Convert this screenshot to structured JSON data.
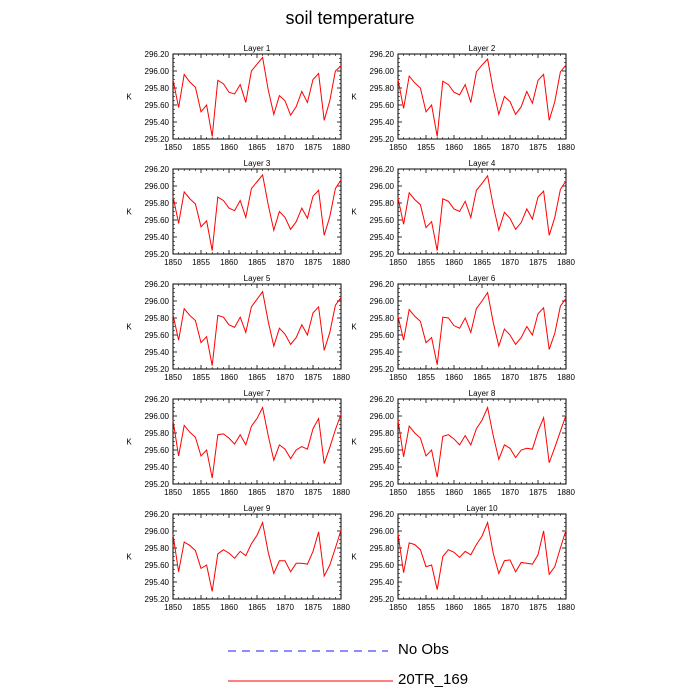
{
  "title": "soil temperature",
  "colors": {
    "model": "#ff0000",
    "obs": "#1a1aff",
    "axis": "#000000"
  },
  "legend": [
    {
      "label": "No Obs",
      "style": "dashed",
      "color": "#1a1aff"
    },
    {
      "label": "20TR_169",
      "style": "solid",
      "color": "#ff0000"
    }
  ],
  "chart_data": [
    {
      "type": "line",
      "title": "Layer 1",
      "ylabel": "K",
      "xlim": [
        1850,
        1880
      ],
      "ylim": [
        295.2,
        296.2
      ],
      "xticks": [
        "1850",
        "1855",
        "1860",
        "1865",
        "1870",
        "1875",
        "1880"
      ],
      "yticks": [
        "295.20",
        "295.40",
        "295.60",
        "295.80",
        "296.00",
        "296.20"
      ],
      "series": [
        {
          "name": "20TR_169",
          "x": [
            1850,
            1851,
            1852,
            1853,
            1854,
            1855,
            1856,
            1857,
            1858,
            1859,
            1860,
            1861,
            1862,
            1863,
            1864,
            1865,
            1866,
            1867,
            1868,
            1869,
            1870,
            1871,
            1872,
            1873,
            1874,
            1875,
            1876,
            1877,
            1878,
            1879,
            1880
          ],
          "values": [
            295.9,
            295.57,
            295.96,
            295.87,
            295.81,
            295.52,
            295.6,
            295.23,
            295.89,
            295.85,
            295.75,
            295.73,
            295.84,
            295.63,
            296.0,
            296.08,
            296.16,
            295.78,
            295.49,
            295.71,
            295.65,
            295.48,
            295.58,
            295.76,
            295.63,
            295.9,
            295.97,
            295.42,
            295.65,
            296.0,
            296.06
          ]
        }
      ]
    },
    {
      "type": "line",
      "title": "Layer 2",
      "ylabel": "K",
      "xlim": [
        1850,
        1880
      ],
      "ylim": [
        295.2,
        296.2
      ],
      "xticks": [
        "1850",
        "1855",
        "1860",
        "1865",
        "1870",
        "1875",
        "1880"
      ],
      "yticks": [
        "295.20",
        "295.40",
        "295.60",
        "295.80",
        "296.00",
        "296.20"
      ],
      "series": [
        {
          "name": "20TR_169",
          "x": [
            1850,
            1851,
            1852,
            1853,
            1854,
            1855,
            1856,
            1857,
            1858,
            1859,
            1860,
            1861,
            1862,
            1863,
            1864,
            1865,
            1866,
            1867,
            1868,
            1869,
            1870,
            1871,
            1872,
            1873,
            1874,
            1875,
            1876,
            1877,
            1878,
            1879,
            1880
          ],
          "values": [
            295.9,
            295.56,
            295.94,
            295.86,
            295.8,
            295.52,
            295.6,
            295.23,
            295.88,
            295.84,
            295.75,
            295.72,
            295.84,
            295.63,
            295.99,
            296.07,
            296.14,
            295.78,
            295.49,
            295.7,
            295.64,
            295.49,
            295.58,
            295.76,
            295.62,
            295.89,
            295.96,
            295.42,
            295.64,
            295.99,
            296.07
          ]
        }
      ]
    },
    {
      "type": "line",
      "title": "Layer 3",
      "ylabel": "K",
      "xlim": [
        1850,
        1880
      ],
      "ylim": [
        295.2,
        296.2
      ],
      "xticks": [
        "1850",
        "1855",
        "1860",
        "1865",
        "1870",
        "1875",
        "1880"
      ],
      "yticks": [
        "295.20",
        "295.40",
        "295.60",
        "295.80",
        "296.00",
        "296.20"
      ],
      "series": [
        {
          "name": "20TR_169",
          "x": [
            1850,
            1851,
            1852,
            1853,
            1854,
            1855,
            1856,
            1857,
            1858,
            1859,
            1860,
            1861,
            1862,
            1863,
            1864,
            1865,
            1866,
            1867,
            1868,
            1869,
            1870,
            1871,
            1872,
            1873,
            1874,
            1875,
            1876,
            1877,
            1878,
            1879,
            1880
          ],
          "values": [
            295.88,
            295.56,
            295.93,
            295.85,
            295.79,
            295.52,
            295.59,
            295.24,
            295.87,
            295.83,
            295.74,
            295.71,
            295.83,
            295.63,
            295.97,
            296.05,
            296.13,
            295.78,
            295.48,
            295.7,
            295.63,
            295.49,
            295.58,
            295.74,
            295.62,
            295.88,
            295.95,
            295.42,
            295.64,
            295.97,
            296.07
          ]
        }
      ]
    },
    {
      "type": "line",
      "title": "Layer 4",
      "ylabel": "K",
      "xlim": [
        1850,
        1880
      ],
      "ylim": [
        295.2,
        296.2
      ],
      "xticks": [
        "1850",
        "1855",
        "1860",
        "1865",
        "1870",
        "1875",
        "1880"
      ],
      "yticks": [
        "295.20",
        "295.40",
        "295.60",
        "295.80",
        "296.00",
        "296.20"
      ],
      "series": [
        {
          "name": "20TR_169",
          "x": [
            1850,
            1851,
            1852,
            1853,
            1854,
            1855,
            1856,
            1857,
            1858,
            1859,
            1860,
            1861,
            1862,
            1863,
            1864,
            1865,
            1866,
            1867,
            1868,
            1869,
            1870,
            1871,
            1872,
            1873,
            1874,
            1875,
            1876,
            1877,
            1878,
            1879,
            1880
          ],
          "values": [
            295.86,
            295.55,
            295.92,
            295.84,
            295.78,
            295.51,
            295.58,
            295.24,
            295.85,
            295.82,
            295.73,
            295.7,
            295.82,
            295.63,
            295.95,
            296.03,
            296.12,
            295.77,
            295.48,
            295.69,
            295.62,
            295.49,
            295.57,
            295.73,
            295.61,
            295.87,
            295.94,
            295.42,
            295.63,
            295.96,
            296.06
          ]
        }
      ]
    },
    {
      "type": "line",
      "title": "Layer 5",
      "ylabel": "K",
      "xlim": [
        1850,
        1880
      ],
      "ylim": [
        295.2,
        296.2
      ],
      "xticks": [
        "1850",
        "1855",
        "1860",
        "1865",
        "1870",
        "1875",
        "1880"
      ],
      "yticks": [
        "295.20",
        "295.40",
        "295.60",
        "295.80",
        "296.00",
        "296.20"
      ],
      "series": [
        {
          "name": "20TR_169",
          "x": [
            1850,
            1851,
            1852,
            1853,
            1854,
            1855,
            1856,
            1857,
            1858,
            1859,
            1860,
            1861,
            1862,
            1863,
            1864,
            1865,
            1866,
            1867,
            1868,
            1869,
            1870,
            1871,
            1872,
            1873,
            1874,
            1875,
            1876,
            1877,
            1878,
            1879,
            1880
          ],
          "values": [
            295.84,
            295.54,
            295.91,
            295.83,
            295.77,
            295.51,
            295.58,
            295.24,
            295.83,
            295.81,
            295.72,
            295.69,
            295.81,
            295.63,
            295.93,
            296.02,
            296.11,
            295.76,
            295.47,
            295.68,
            295.61,
            295.49,
            295.57,
            295.72,
            295.6,
            295.86,
            295.93,
            295.42,
            295.63,
            295.95,
            296.04
          ]
        }
      ]
    },
    {
      "type": "line",
      "title": "Layer 6",
      "ylabel": "K",
      "xlim": [
        1850,
        1880
      ],
      "ylim": [
        295.2,
        296.2
      ],
      "xticks": [
        "1850",
        "1855",
        "1860",
        "1865",
        "1870",
        "1875",
        "1880"
      ],
      "yticks": [
        "295.20",
        "295.40",
        "295.60",
        "295.80",
        "296.00",
        "296.20"
      ],
      "series": [
        {
          "name": "20TR_169",
          "x": [
            1850,
            1851,
            1852,
            1853,
            1854,
            1855,
            1856,
            1857,
            1858,
            1859,
            1860,
            1861,
            1862,
            1863,
            1864,
            1865,
            1866,
            1867,
            1868,
            1869,
            1870,
            1871,
            1872,
            1873,
            1874,
            1875,
            1876,
            1877,
            1878,
            1879,
            1880
          ],
          "values": [
            295.82,
            295.54,
            295.9,
            295.82,
            295.76,
            295.51,
            295.57,
            295.25,
            295.81,
            295.8,
            295.71,
            295.68,
            295.8,
            295.63,
            295.91,
            296.0,
            296.1,
            295.75,
            295.47,
            295.67,
            295.6,
            295.49,
            295.57,
            295.7,
            295.6,
            295.85,
            295.92,
            295.43,
            295.62,
            295.94,
            296.03
          ]
        }
      ]
    },
    {
      "type": "line",
      "title": "Layer 7",
      "ylabel": "K",
      "xlim": [
        1850,
        1880
      ],
      "ylim": [
        295.2,
        296.2
      ],
      "xticks": [
        "1850",
        "1855",
        "1860",
        "1865",
        "1870",
        "1875",
        "1880"
      ],
      "yticks": [
        "295.20",
        "295.40",
        "295.60",
        "295.80",
        "296.00",
        "296.20"
      ],
      "series": [
        {
          "name": "20TR_169",
          "x": [
            1850,
            1851,
            1852,
            1853,
            1854,
            1855,
            1856,
            1857,
            1858,
            1859,
            1860,
            1861,
            1862,
            1863,
            1864,
            1865,
            1866,
            1867,
            1868,
            1869,
            1870,
            1871,
            1872,
            1873,
            1874,
            1875,
            1876,
            1877,
            1878,
            1879,
            1880
          ],
          "values": [
            295.95,
            295.53,
            295.89,
            295.81,
            295.75,
            295.53,
            295.6,
            295.27,
            295.78,
            295.79,
            295.74,
            295.67,
            295.78,
            295.66,
            295.88,
            295.97,
            296.1,
            295.77,
            295.48,
            295.66,
            295.61,
            295.5,
            295.6,
            295.64,
            295.61,
            295.85,
            295.97,
            295.44,
            295.63,
            295.84,
            296.02
          ]
        }
      ]
    },
    {
      "type": "line",
      "title": "Layer 8",
      "ylabel": "K",
      "xlim": [
        1850,
        1880
      ],
      "ylim": [
        295.2,
        296.2
      ],
      "xticks": [
        "1850",
        "1855",
        "1860",
        "1865",
        "1870",
        "1875",
        "1880"
      ],
      "yticks": [
        "295.20",
        "295.40",
        "295.60",
        "295.80",
        "296.00",
        "296.20"
      ],
      "series": [
        {
          "name": "20TR_169",
          "x": [
            1850,
            1851,
            1852,
            1853,
            1854,
            1855,
            1856,
            1857,
            1858,
            1859,
            1860,
            1861,
            1862,
            1863,
            1864,
            1865,
            1866,
            1867,
            1868,
            1869,
            1870,
            1871,
            1872,
            1873,
            1874,
            1875,
            1876,
            1877,
            1878,
            1879,
            1880
          ],
          "values": [
            295.95,
            295.52,
            295.88,
            295.8,
            295.74,
            295.53,
            295.6,
            295.28,
            295.76,
            295.78,
            295.73,
            295.66,
            295.77,
            295.66,
            295.85,
            295.95,
            296.1,
            295.77,
            295.49,
            295.66,
            295.62,
            295.51,
            295.6,
            295.62,
            295.61,
            295.82,
            295.98,
            295.45,
            295.63,
            295.82,
            296.01
          ]
        }
      ]
    },
    {
      "type": "line",
      "title": "Layer 9",
      "ylabel": "K",
      "xlim": [
        1850,
        1880
      ],
      "ylim": [
        295.2,
        296.2
      ],
      "xticks": [
        "1850",
        "1855",
        "1860",
        "1865",
        "1870",
        "1875",
        "1880"
      ],
      "yticks": [
        "295.20",
        "295.40",
        "295.60",
        "295.80",
        "296.00",
        "296.20"
      ],
      "series": [
        {
          "name": "20TR_169",
          "x": [
            1850,
            1851,
            1852,
            1853,
            1854,
            1855,
            1856,
            1857,
            1858,
            1859,
            1860,
            1861,
            1862,
            1863,
            1864,
            1865,
            1866,
            1867,
            1868,
            1869,
            1870,
            1871,
            1872,
            1873,
            1874,
            1875,
            1876,
            1877,
            1878,
            1879,
            1880
          ],
          "values": [
            295.96,
            295.52,
            295.87,
            295.83,
            295.77,
            295.56,
            295.6,
            295.29,
            295.73,
            295.78,
            295.74,
            295.68,
            295.76,
            295.71,
            295.85,
            295.95,
            296.1,
            295.75,
            295.5,
            295.65,
            295.65,
            295.52,
            295.62,
            295.62,
            295.61,
            295.76,
            295.99,
            295.47,
            295.6,
            295.8,
            296.01
          ]
        }
      ]
    },
    {
      "type": "line",
      "title": "Layer 10",
      "ylabel": "K",
      "xlim": [
        1850,
        1880
      ],
      "ylim": [
        295.2,
        296.2
      ],
      "xticks": [
        "1850",
        "1855",
        "1860",
        "1865",
        "1870",
        "1875",
        "1880"
      ],
      "yticks": [
        "295.20",
        "295.40",
        "295.60",
        "295.80",
        "296.00",
        "296.20"
      ],
      "series": [
        {
          "name": "20TR_169",
          "x": [
            1850,
            1851,
            1852,
            1853,
            1854,
            1855,
            1856,
            1857,
            1858,
            1859,
            1860,
            1861,
            1862,
            1863,
            1864,
            1865,
            1866,
            1867,
            1868,
            1869,
            1870,
            1871,
            1872,
            1873,
            1874,
            1875,
            1876,
            1877,
            1878,
            1879,
            1880
          ],
          "values": [
            295.97,
            295.51,
            295.86,
            295.84,
            295.78,
            295.58,
            295.6,
            295.31,
            295.7,
            295.78,
            295.75,
            295.69,
            295.76,
            295.72,
            295.84,
            295.94,
            296.1,
            295.74,
            295.5,
            295.65,
            295.66,
            295.52,
            295.63,
            295.62,
            295.61,
            295.72,
            296.0,
            295.49,
            295.58,
            295.8,
            296.01
          ]
        }
      ]
    }
  ]
}
